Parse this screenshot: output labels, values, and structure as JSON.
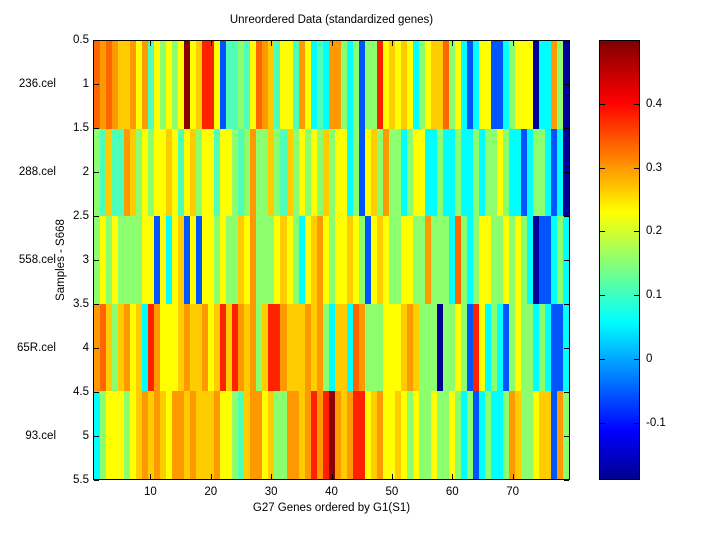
{
  "figure": {
    "background": "#ffffff",
    "text_color": "#000000"
  },
  "chart_data": {
    "type": "heatmap",
    "title": "Unreordered Data (standardized genes)",
    "xlabel": "G27 Genes ordered by G1(S1)",
    "ylabel": "Samples - S668",
    "row_labels": [
      "236.cel",
      "288.cel",
      "558.cel",
      "65R.cel",
      "93.cel"
    ],
    "y_ticks": [
      0.5,
      1,
      1.5,
      2,
      2.5,
      3,
      3.5,
      4,
      4.5,
      5,
      5.5
    ],
    "x_ticks": [
      10,
      20,
      30,
      40,
      50,
      60,
      70
    ],
    "x_range": [
      0.5,
      79.5
    ],
    "y_range": [
      0.5,
      5.5
    ],
    "n_cols": 79,
    "n_rows": 5,
    "grid": false,
    "palette": {
      "M": "#8b0000",
      "R": "#ff2200",
      "r": "#ff6600",
      "o": "#ff9900",
      "d": "#ffcc00",
      "y": "#ffff00",
      "g": "#8cff6e",
      "a": "#4dffb8",
      "c": "#00ffff",
      "b": "#0055ff",
      "N": "#000099"
    },
    "rows": [
      "roroddoyoaygygyMydRRybaagayrodayyaoycacoogcgbggRydydycgyddrgycbcyybbcgyyyNccogN",
      "gadaaodgygyydyaydgyyayygagoggdgadgygygdgyycgbydgoggcgyyccgccgccgcggygccbcggcbcN",
      "gygyggggyybycydbybyygyggdyogggydygcydoygyydygbydyggyyggogggcrgcgyyggygygcNbbcgc",
      "ordgdoydcRoyyydoddoydRdRodogdRRodddodogcddcrogggyyydodgggNggygbRycgcbgyggcgcbbc",
      "cgyyygydododyoododddoyygadooydggoodoRoRModoRRydoyydygyggyggygcgbcgccgodggyddbog"
    ],
    "colorbar": {
      "colormap": "jet",
      "tick_labels": [
        "0.4",
        "0.3",
        "0.2",
        "0.1",
        "0",
        "-0.1"
      ],
      "tick_values": [
        0.4,
        0.3,
        0.2,
        0.1,
        0,
        -0.1
      ],
      "vmax": 0.5,
      "vmin": -0.19
    }
  }
}
